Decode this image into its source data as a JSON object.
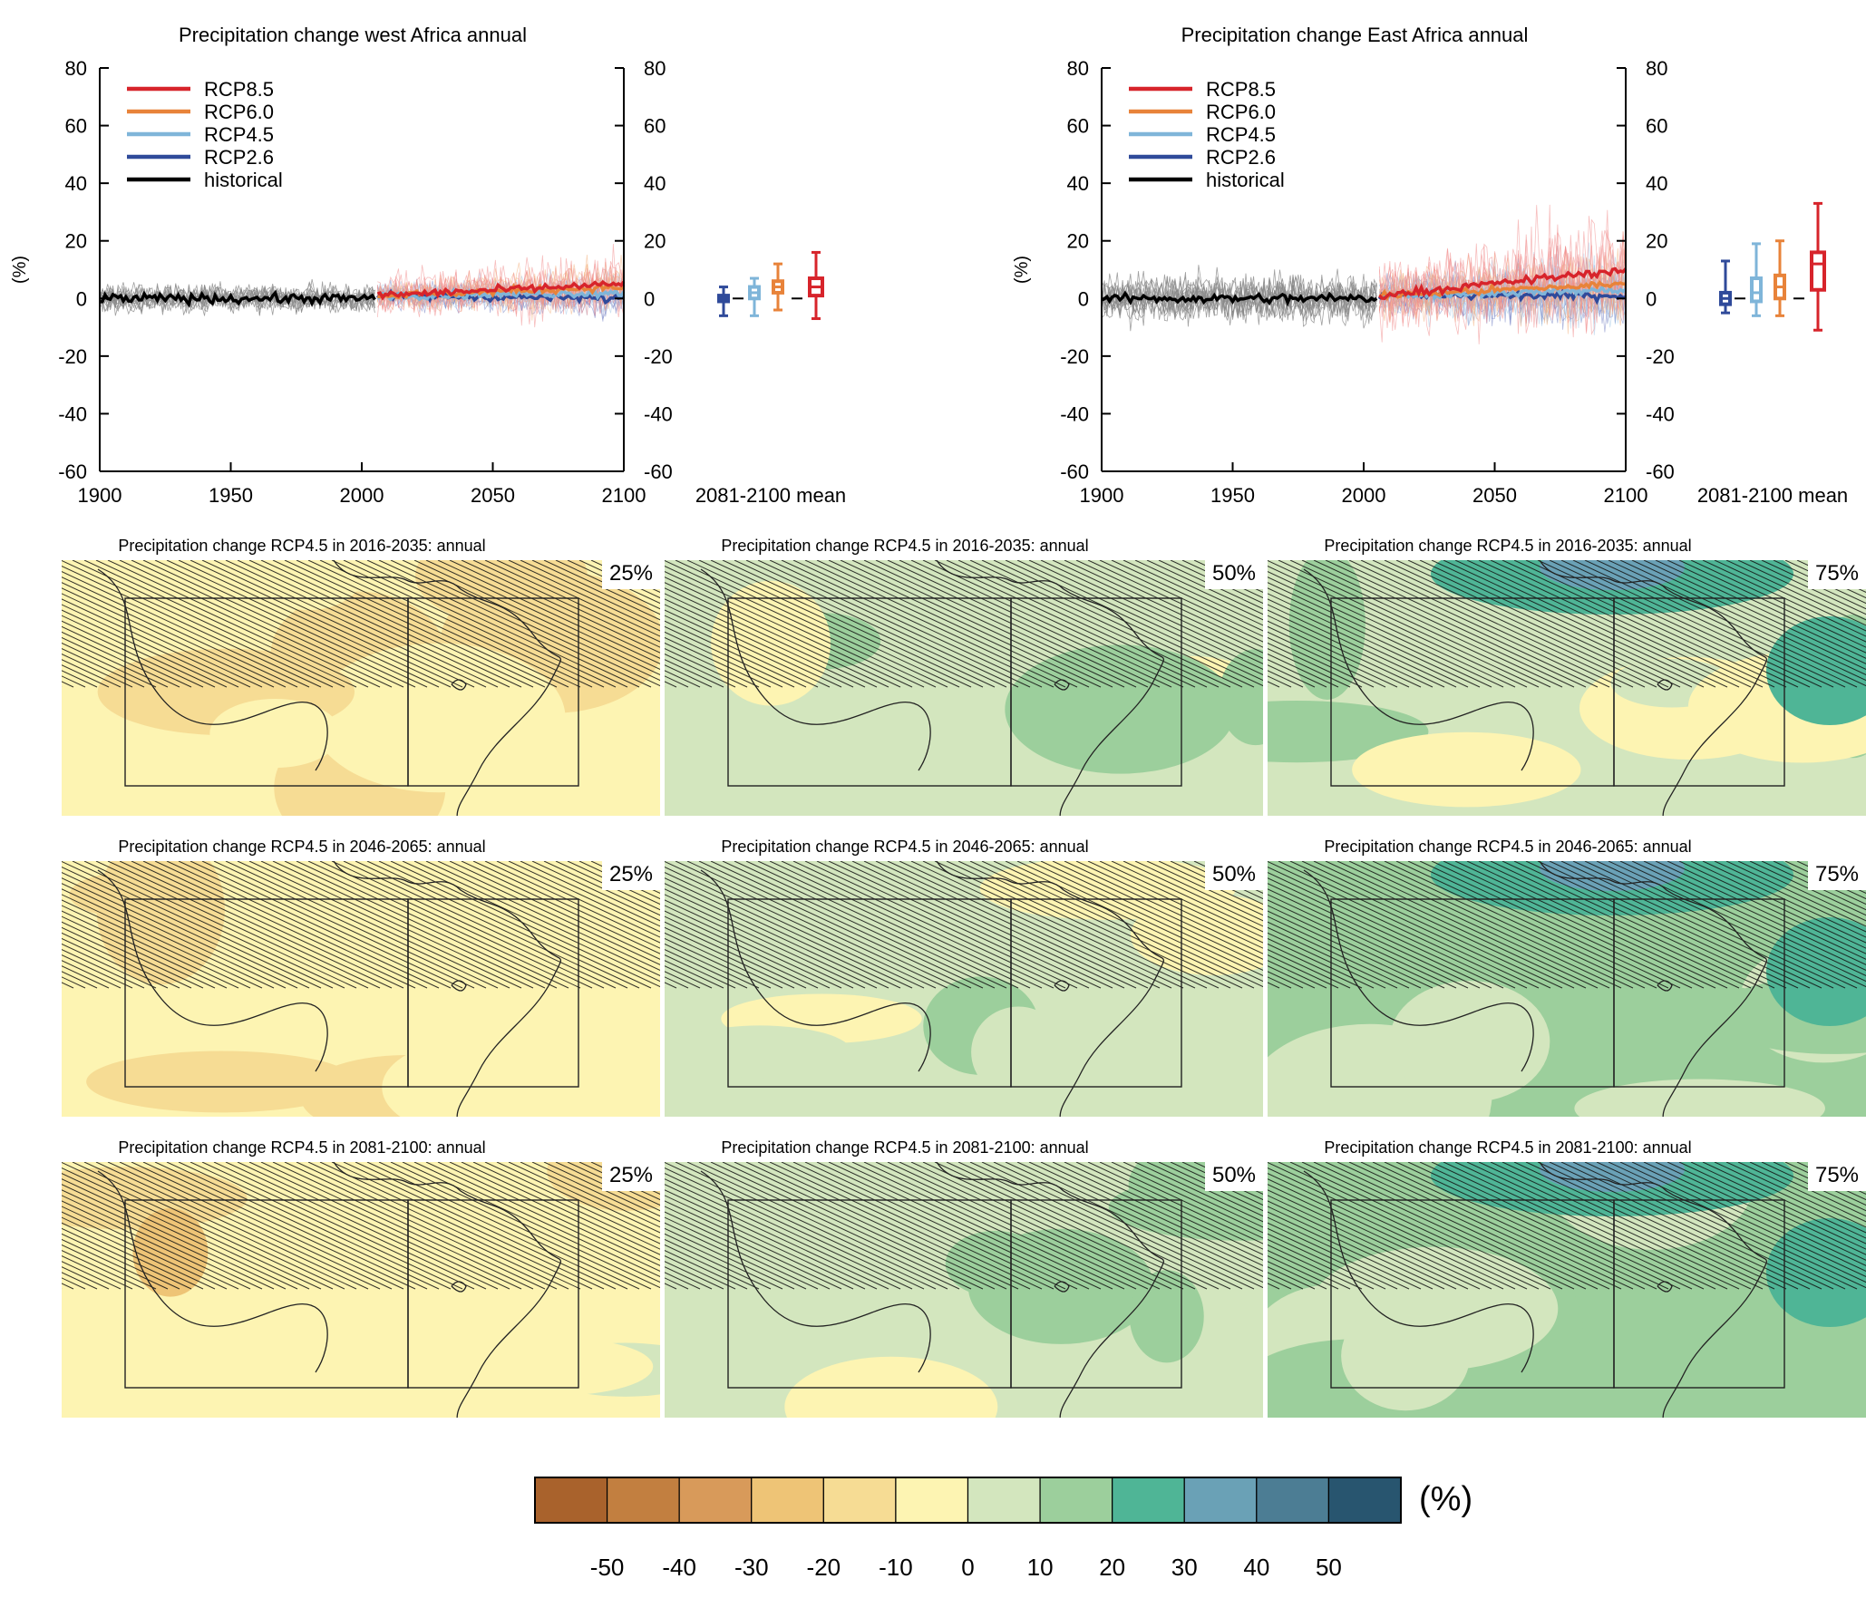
{
  "chart_data": [
    {
      "type": "line",
      "title": "Precipitation change west Africa annual",
      "ylabel": "(%)",
      "xlim": [
        1900,
        2100
      ],
      "ylim": [
        -60,
        80
      ],
      "x_ticks": [
        "1900",
        "1950",
        "2000",
        "2050",
        "2100"
      ],
      "y_ticks": [
        "80",
        "60",
        "40",
        "20",
        "0",
        "-20",
        "-40",
        "-60"
      ],
      "boxplot_label": "2081-2100 mean",
      "legend_position": "top-left",
      "series": [
        {
          "name": "RCP8.5",
          "color": "#d7242b",
          "period": [
            2006,
            2100
          ],
          "mean_start": 1,
          "mean_end": 5,
          "spread": 14
        },
        {
          "name": "RCP6.0",
          "color": "#e8833a",
          "period": [
            2006,
            2100
          ],
          "mean_start": 1,
          "mean_end": 4,
          "spread": 10
        },
        {
          "name": "RCP4.5",
          "color": "#7fb5d9",
          "period": [
            2006,
            2100
          ],
          "mean_start": 1,
          "mean_end": 2,
          "spread": 9
        },
        {
          "name": "RCP2.6",
          "color": "#2f4a9a",
          "period": [
            2006,
            2100
          ],
          "mean_start": 1,
          "mean_end": 0,
          "spread": 8
        },
        {
          "name": "historical",
          "color": "#000000",
          "period": [
            1900,
            2005
          ],
          "mean_start": 1,
          "mean_end": 0,
          "spread": 8
        }
      ],
      "boxes": [
        {
          "name": "RCP2.6",
          "color": "#2f4a9a",
          "min": -6,
          "q1": -1,
          "median": 0,
          "q3": 1,
          "max": 4
        },
        {
          "name": "RCP4.5",
          "color": "#7fb5d9",
          "min": -6,
          "q1": 0,
          "median": 2,
          "q3": 4,
          "max": 7
        },
        {
          "name": "RCP6.0",
          "color": "#e8833a",
          "min": -4,
          "q1": 2,
          "median": 4,
          "q3": 6,
          "max": 12
        },
        {
          "name": "RCP8.5",
          "color": "#d7242b",
          "min": -7,
          "q1": 1,
          "median": 4,
          "q3": 7,
          "max": 16
        }
      ]
    },
    {
      "type": "line",
      "title": "Precipitation change East Africa annual",
      "ylabel": "(%)",
      "xlim": [
        1900,
        2100
      ],
      "ylim": [
        -60,
        80
      ],
      "x_ticks": [
        "1900",
        "1950",
        "2000",
        "2050",
        "2100"
      ],
      "y_ticks": [
        "80",
        "60",
        "40",
        "20",
        "0",
        "-20",
        "-40",
        "-60"
      ],
      "boxplot_label": "2081-2100 mean",
      "legend_position": "top-left",
      "series": [
        {
          "name": "RCP8.5",
          "color": "#d7242b",
          "period": [
            2006,
            2100
          ],
          "mean_start": 1,
          "mean_end": 10,
          "spread": 24
        },
        {
          "name": "RCP6.0",
          "color": "#e8833a",
          "period": [
            2006,
            2100
          ],
          "mean_start": 1,
          "mean_end": 5,
          "spread": 16
        },
        {
          "name": "RCP4.5",
          "color": "#7fb5d9",
          "period": [
            2006,
            2100
          ],
          "mean_start": 1,
          "mean_end": 3,
          "spread": 15
        },
        {
          "name": "RCP2.6",
          "color": "#2f4a9a",
          "period": [
            2006,
            2100
          ],
          "mean_start": 1,
          "mean_end": 1,
          "spread": 14
        },
        {
          "name": "historical",
          "color": "#000000",
          "period": [
            1900,
            2005
          ],
          "mean_start": 0,
          "mean_end": 0,
          "spread": 13
        }
      ],
      "boxes": [
        {
          "name": "RCP2.6",
          "color": "#2f4a9a",
          "min": -5,
          "q1": -2,
          "median": 0,
          "q3": 2,
          "max": 13
        },
        {
          "name": "RCP4.5",
          "color": "#7fb5d9",
          "min": -6,
          "q1": -1,
          "median": 2,
          "q3": 7,
          "max": 19
        },
        {
          "name": "RCP6.0",
          "color": "#e8833a",
          "min": -6,
          "q1": 0,
          "median": 4,
          "q3": 8,
          "max": 20
        },
        {
          "name": "RCP8.5",
          "color": "#d7242b",
          "min": -11,
          "q1": 3,
          "median": 12,
          "q3": 16,
          "max": 33
        }
      ]
    },
    {
      "type": "heatmap",
      "panels": [
        {
          "title": "Precipitation change RCP4.5 in 2016-2035: annual",
          "percentile": "25%",
          "base_value": -8
        },
        {
          "title": "Precipitation change RCP4.5 in 2016-2035: annual",
          "percentile": "50%",
          "base_value": 3
        },
        {
          "title": "Precipitation change RCP4.5 in 2016-2035: annual",
          "percentile": "75%",
          "base_value": 8
        },
        {
          "title": "Precipitation change RCP4.5 in 2046-2065: annual",
          "percentile": "25%",
          "base_value": -9
        },
        {
          "title": "Precipitation change RCP4.5 in 2046-2065: annual",
          "percentile": "50%",
          "base_value": 4
        },
        {
          "title": "Precipitation change RCP4.5 in 2046-2065: annual",
          "percentile": "75%",
          "base_value": 11
        },
        {
          "title": "Precipitation change RCP4.5 in 2081-2100: annual",
          "percentile": "25%",
          "base_value": -10
        },
        {
          "title": "Precipitation change RCP4.5 in 2081-2100: annual",
          "percentile": "50%",
          "base_value": 5
        },
        {
          "title": "Precipitation change RCP4.5 in 2081-2100: annual",
          "percentile": "75%",
          "base_value": 13
        }
      ],
      "colorbar": {
        "unit": "(%)",
        "tick_labels": [
          "-50",
          "-40",
          "-30",
          "-20",
          "-10",
          "0",
          "10",
          "20",
          "30",
          "40",
          "50"
        ],
        "colors": [
          "#a9622c",
          "#c27f40",
          "#d89a5a",
          "#eec476",
          "#f6dc94",
          "#fdf4b2",
          "#d3e6be",
          "#9ccf9c",
          "#4fb596",
          "#6aa1b6",
          "#4c7d94",
          "#28556f"
        ]
      }
    }
  ]
}
